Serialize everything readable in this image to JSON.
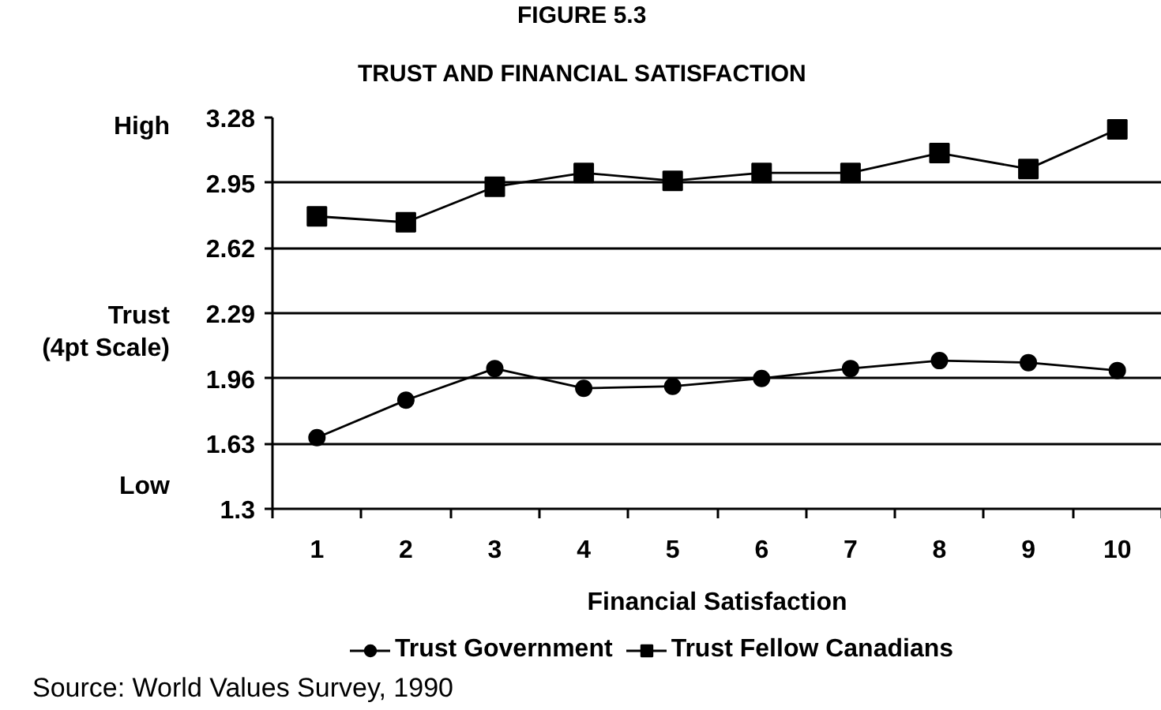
{
  "chart_data": {
    "type": "line",
    "title": "FIGURE 5.3",
    "subtitle": "TRUST AND FINANCIAL SATISFACTION",
    "xlabel": "Financial Satisfaction",
    "ylabel": "Trust (4pt Scale)",
    "categories": [
      "1",
      "2",
      "3",
      "4",
      "5",
      "6",
      "7",
      "8",
      "9",
      "10"
    ],
    "series": [
      {
        "name": "Trust Government",
        "color": "#000000",
        "marker": "circle",
        "values": [
          1.66,
          1.85,
          2.01,
          1.91,
          1.92,
          1.96,
          2.01,
          2.05,
          2.04,
          2.0
        ]
      },
      {
        "name": "Trust Fellow Canadians",
        "color": "#000000",
        "marker": "square",
        "values": [
          2.78,
          2.75,
          2.93,
          3.0,
          2.96,
          3.0,
          3.0,
          3.1,
          3.02,
          3.22
        ]
      }
    ],
    "ylim": [
      1.3,
      3.28
    ],
    "yticks": [
      1.3,
      1.63,
      1.96,
      2.29,
      2.62,
      2.95,
      3.28
    ],
    "grid": "y",
    "legend": "bottom",
    "annotations": [
      "High",
      "Low",
      "Source: World Values Survey, 1990"
    ]
  }
}
